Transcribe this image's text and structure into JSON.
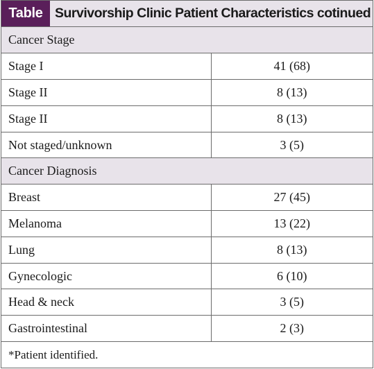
{
  "header": {
    "badge": "Table",
    "title": "Survivorship Clinic Patient Characteristics cotinued"
  },
  "sections": [
    {
      "heading": "Cancer Stage",
      "rows": [
        {
          "label": "Stage I",
          "value": "41 (68)"
        },
        {
          "label": "Stage II",
          "value": "8 (13)"
        },
        {
          "label": "Stage II",
          "value": "8 (13)"
        },
        {
          "label": "Not staged/unknown",
          "value": "3 (5)"
        }
      ]
    },
    {
      "heading": "Cancer Diagnosis",
      "rows": [
        {
          "label": "Breast",
          "value": "27 (45)"
        },
        {
          "label": "Melanoma",
          "value": "13 (22)"
        },
        {
          "label": "Lung",
          "value": "8 (13)"
        },
        {
          "label": "Gynecologic",
          "value": "6 (10)"
        },
        {
          "label": "Head & neck",
          "value": "3 (5)"
        },
        {
          "label": "Gastrointestinal",
          "value": "2 (3)"
        }
      ]
    }
  ],
  "footnote": "*Patient identified.",
  "colors": {
    "badge_bg": "#5a1f5a",
    "header_bg": "#e8e3ea",
    "border": "#6b6b6b"
  }
}
